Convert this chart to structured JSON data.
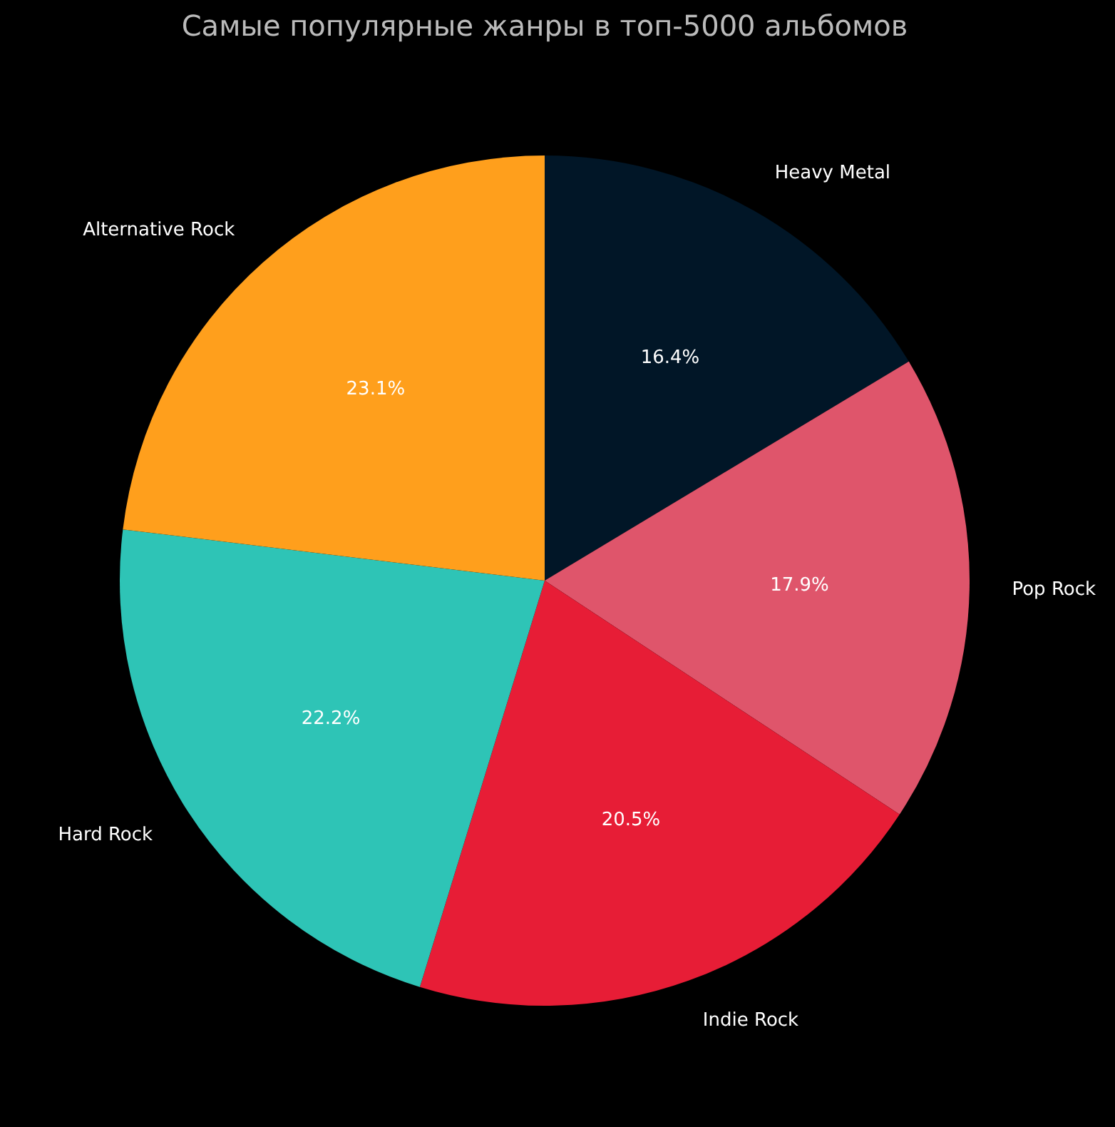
{
  "chart_data": {
    "type": "pie",
    "title": "Самые популярные жанры в топ-5000 альбомов",
    "categories": [
      "Heavy Metal",
      "Pop Rock",
      "Indie Rock",
      "Hard Rock",
      "Alternative Rock"
    ],
    "values": [
      16.4,
      17.9,
      20.5,
      22.2,
      23.1
    ],
    "colors": [
      "#011627",
      "#df556b",
      "#e71d36",
      "#2ec4b6",
      "#ff9f1c"
    ],
    "value_labels": [
      "16.4%",
      "17.9%",
      "20.5%",
      "22.2%",
      "23.1%"
    ],
    "legend": false
  }
}
